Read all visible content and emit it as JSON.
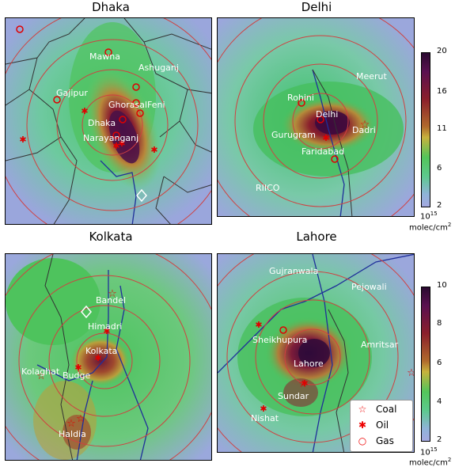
{
  "panels": {
    "dhaka": {
      "title": "Dhaka",
      "labels": [
        "Mawna",
        "Ashuganj",
        "Gajipur",
        "GhorasalFeni",
        "Dhaka",
        "Narayanganj"
      ]
    },
    "delhi": {
      "title": "Delhi",
      "labels": [
        "Meerut",
        "Rohini",
        "Delhi",
        "Dadri",
        "Gurugram",
        "Faridabad",
        "RIICO"
      ]
    },
    "kolkata": {
      "title": "Kolkata",
      "labels": [
        "Bandel",
        "Himadri",
        "Kolkata",
        "Kolaghat",
        "Budge",
        "Haldia"
      ]
    },
    "lahore": {
      "title": "Lahore",
      "labels": [
        "Gujranwala",
        "Pejowali",
        "Sheikhupura",
        "Amritsar",
        "Lahore",
        "Sundar",
        "Nishat"
      ]
    }
  },
  "colorbar_top": {
    "ticks": [
      "20",
      "16",
      "11",
      "6",
      "2"
    ],
    "unit_exp": "10",
    "unit_sup": "15",
    "unit_line2": "molec/cm",
    "unit_sup2": "2"
  },
  "colorbar_bottom": {
    "ticks": [
      "10",
      "8",
      "6",
      "4",
      "2"
    ],
    "unit_exp": "10",
    "unit_sup": "15",
    "unit_line2": "molec/cm",
    "unit_sup2": "2"
  },
  "legend": {
    "items": [
      {
        "symbol": "☆",
        "label": "Coal"
      },
      {
        "symbol": "✱",
        "label": "Oil"
      },
      {
        "symbol": "○",
        "label": "Gas"
      }
    ]
  },
  "colors": {
    "marker": "#e00000",
    "ring": "#d04040",
    "river": "#1f2f9a",
    "border": "#333333"
  }
}
